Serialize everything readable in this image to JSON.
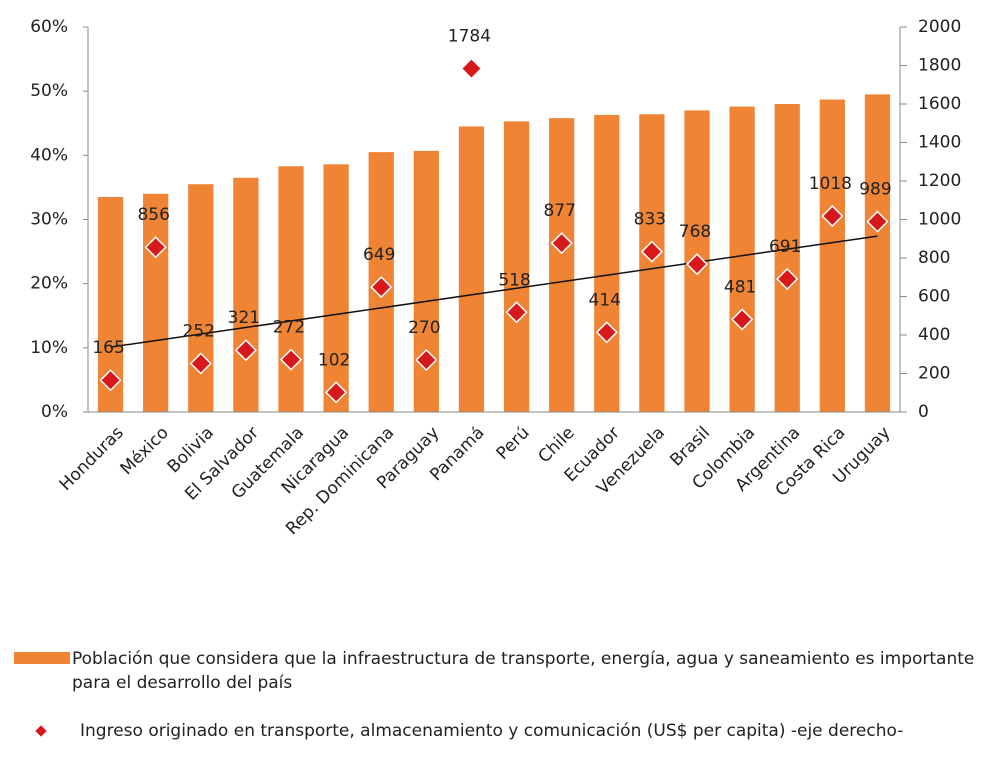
{
  "chart_data": {
    "type": "bar_scatter",
    "categories": [
      "Honduras",
      "México",
      "Bolivia",
      "El Salvador",
      "Guatemala",
      "Nicaragua",
      "Rep. Dominicana",
      "Paraguay",
      "Panamá",
      "Perú",
      "Chile",
      "Ecuador",
      "Venezuela",
      "Brasil",
      "Colombia",
      "Argentina",
      "Costa Rica",
      "Uruguay"
    ],
    "series": [
      {
        "name": "Población que considera que la infraestructura de transporte, energía, agua y saneamiento es importante para el desarrollo del país",
        "color": "#ee8434",
        "type": "bar",
        "values": [
          33.5,
          34,
          35.5,
          36.5,
          38.3,
          38.6,
          40.5,
          40.7,
          44.5,
          45.3,
          45.8,
          46.3,
          46.4,
          47,
          47.6,
          48,
          48.7,
          49.5
        ]
      },
      {
        "name": "Ingreso originado en transporte, almacenamiento y comunicación (US$ per capita) -eje derecho-",
        "color": "#d7191c",
        "type": "scatter",
        "axis": "y2",
        "trendline": true,
        "values": [
          165,
          856,
          252,
          321,
          272,
          102,
          649,
          270,
          1784,
          518,
          877,
          414,
          833,
          768,
          481,
          691,
          1018,
          989
        ]
      }
    ],
    "ylim": [
      0,
      60
    ],
    "yticks": [
      {
        "value": 0,
        "label": "0%"
      },
      {
        "value": 10,
        "label": "10%"
      },
      {
        "value": 20,
        "label": "20%"
      },
      {
        "value": 30,
        "label": "30%"
      },
      {
        "value": 40,
        "label": "40%"
      },
      {
        "value": 50,
        "label": "50%"
      },
      {
        "value": 60,
        "label": "60%"
      }
    ],
    "y2lim": [
      0,
      2000
    ],
    "y2ticks": [
      0,
      200,
      400,
      600,
      800,
      1000,
      1200,
      1400,
      1600,
      1800,
      2000
    ],
    "grid": false
  }
}
